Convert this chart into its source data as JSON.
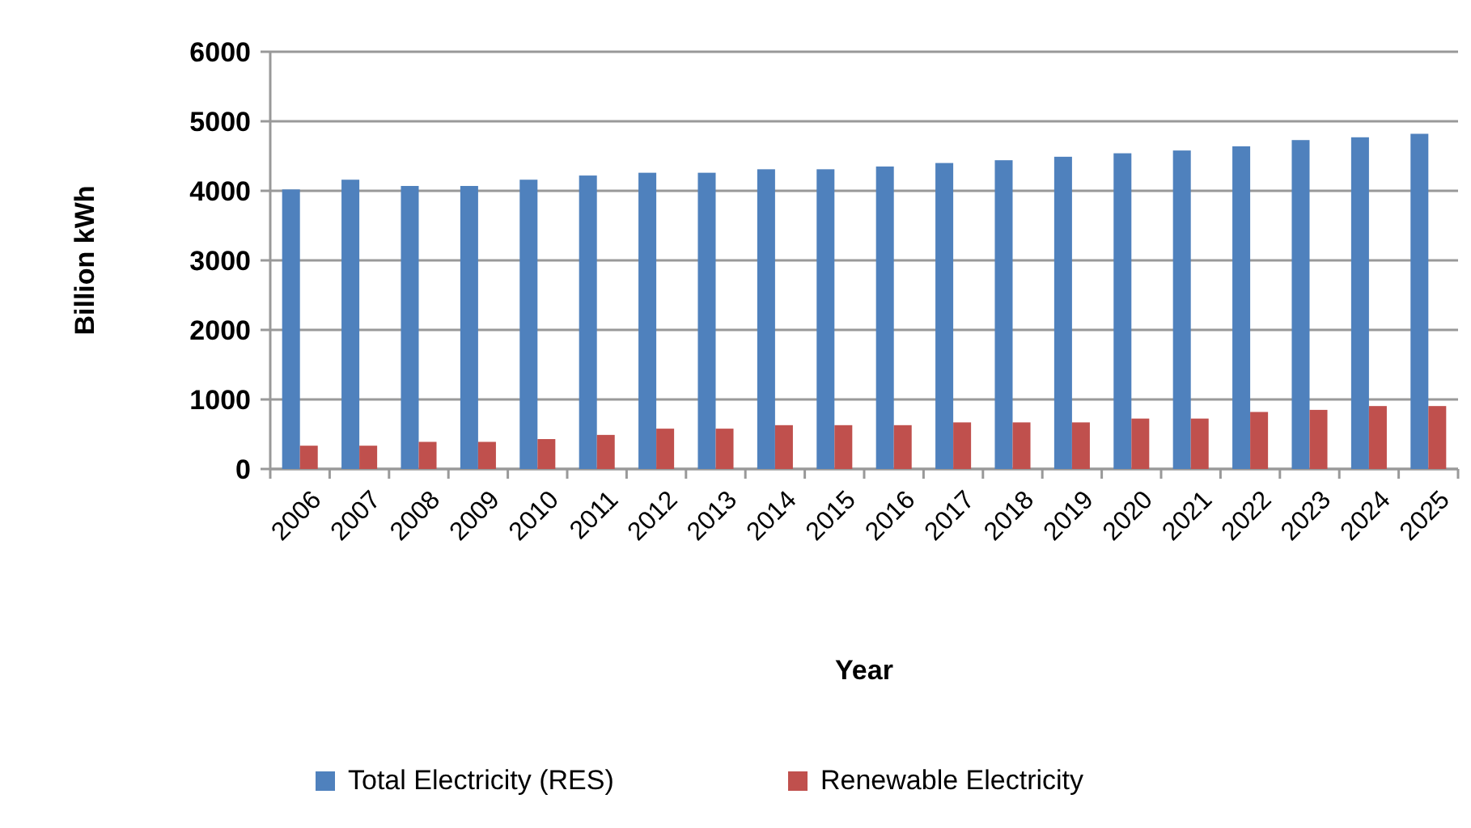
{
  "chart_data": {
    "type": "bar",
    "xlabel": "Year",
    "ylabel": "Billion kWh",
    "categories": [
      "2006",
      "2007",
      "2008",
      "2009",
      "2010",
      "2011",
      "2012",
      "2013",
      "2014",
      "2015",
      "2016",
      "2017",
      "2018",
      "2019",
      "2020",
      "2021",
      "2022",
      "2023",
      "2024",
      "2025"
    ],
    "series": [
      {
        "name": "Total Electricity (RES)",
        "color": "#4f81bd",
        "values": [
          4020,
          4160,
          4070,
          4070,
          4160,
          4220,
          4260,
          4260,
          4310,
          4310,
          4350,
          4400,
          4440,
          4490,
          4540,
          4580,
          4640,
          4730,
          4770,
          4820
        ]
      },
      {
        "name": "Renewable Electricity",
        "color": "#c0504d",
        "values": [
          335,
          335,
          390,
          390,
          430,
          490,
          580,
          580,
          630,
          630,
          630,
          670,
          670,
          670,
          725,
          725,
          820,
          850,
          905,
          905
        ]
      }
    ],
    "ylim": [
      0,
      6000
    ],
    "yticks": [
      0,
      1000,
      2000,
      3000,
      4000,
      5000,
      6000
    ],
    "grid": "y",
    "legend": "bottom"
  }
}
